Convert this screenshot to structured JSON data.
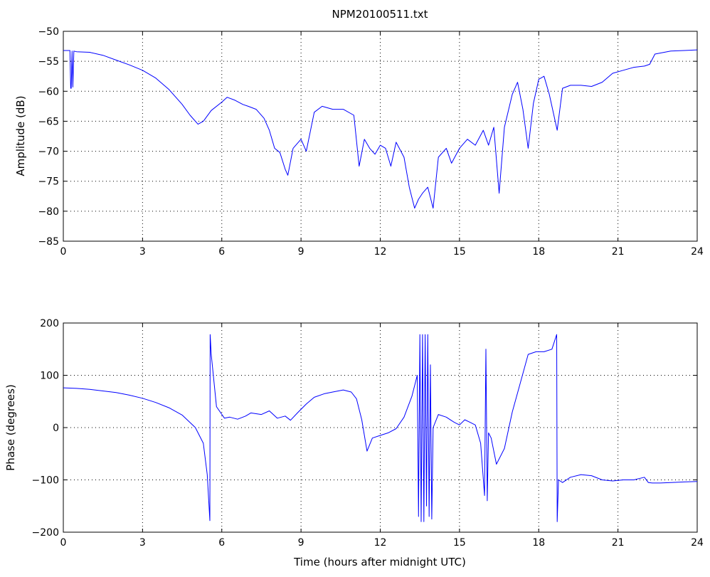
{
  "chart_data": [
    {
      "type": "line",
      "title": "NPM20100511.txt",
      "xlabel": "",
      "ylabel": "Amplitude (dB)",
      "xlim": [
        0,
        24
      ],
      "ylim": [
        -85,
        -50
      ],
      "xticks": [
        "0",
        "3",
        "6",
        "9",
        "12",
        "15",
        "18",
        "21",
        "24"
      ],
      "yticks": [
        "-50",
        "-55",
        "-60",
        "-65",
        "-70",
        "-75",
        "-80",
        "-85"
      ],
      "grid": true,
      "color": "#0000ff",
      "x": [
        0,
        0.25,
        0.28,
        0.3,
        0.33,
        0.36,
        0.4,
        0.5,
        1.0,
        1.5,
        2.0,
        2.5,
        3.0,
        3.5,
        4.0,
        4.5,
        4.8,
        5.1,
        5.3,
        5.6,
        6.0,
        6.2,
        6.5,
        6.8,
        7.0,
        7.3,
        7.6,
        7.8,
        8.0,
        8.2,
        8.4,
        8.5,
        8.7,
        9.0,
        9.2,
        9.5,
        9.8,
        10.2,
        10.6,
        11.0,
        11.2,
        11.4,
        11.6,
        11.8,
        12.0,
        12.2,
        12.4,
        12.6,
        12.9,
        13.1,
        13.3,
        13.45,
        13.6,
        13.8,
        14.0,
        14.2,
        14.5,
        14.7,
        15.0,
        15.3,
        15.6,
        15.9,
        16.1,
        16.3,
        16.5,
        16.7,
        17.0,
        17.2,
        17.4,
        17.6,
        17.8,
        18.0,
        18.2,
        18.4,
        18.7,
        18.9,
        19.2,
        19.6,
        20.0,
        20.4,
        20.8,
        21.2,
        21.6,
        22.0,
        22.2,
        22.4,
        23.0,
        23.5,
        24.0
      ],
      "values": [
        -53.2,
        -53.2,
        -59.5,
        -59.5,
        -53.3,
        -59.3,
        -53.3,
        -53.4,
        -53.5,
        -54.0,
        -54.8,
        -55.6,
        -56.5,
        -57.8,
        -59.7,
        -62.2,
        -64.0,
        -65.5,
        -65.0,
        -63.2,
        -61.8,
        -61.0,
        -61.5,
        -62.2,
        -62.5,
        -63.0,
        -64.5,
        -66.5,
        -69.5,
        -70.2,
        -73.0,
        -74.0,
        -69.5,
        -68.0,
        -70.0,
        -63.5,
        -62.5,
        -63.0,
        -63.0,
        -64.0,
        -72.5,
        -68.0,
        -69.5,
        -70.5,
        -69.0,
        -69.5,
        -72.5,
        -68.5,
        -71.0,
        -76.0,
        -79.5,
        -78.0,
        -77.0,
        -76.0,
        -79.5,
        -71.0,
        -69.5,
        -72.0,
        -69.5,
        -68.0,
        -69.0,
        -66.5,
        -69.0,
        -66.0,
        -77.0,
        -66.0,
        -60.5,
        -58.5,
        -63.0,
        -69.5,
        -62.0,
        -58.0,
        -57.5,
        -60.5,
        -66.5,
        -59.5,
        -59.0,
        -59.0,
        -59.2,
        -58.5,
        -57.0,
        -56.5,
        -56.0,
        -55.8,
        -55.5,
        -53.8,
        -53.3,
        -53.2,
        -53.1
      ]
    },
    {
      "type": "line",
      "title": "",
      "xlabel": "Time (hours after midnight UTC)",
      "ylabel": "Phase (degrees)",
      "xlim": [
        0,
        24
      ],
      "ylim": [
        -200,
        200
      ],
      "xticks": [
        "0",
        "3",
        "6",
        "9",
        "12",
        "15",
        "18",
        "21",
        "24"
      ],
      "yticks": [
        "200",
        "100",
        "0",
        "-100",
        "-200"
      ],
      "grid": true,
      "color": "#0000ff",
      "x": [
        0,
        0.5,
        1.0,
        1.5,
        2.0,
        2.5,
        3.0,
        3.5,
        4.0,
        4.5,
        5.0,
        5.3,
        5.45,
        5.55,
        5.56,
        5.6,
        5.8,
        6.1,
        6.3,
        6.6,
        6.9,
        7.1,
        7.5,
        7.8,
        8.1,
        8.4,
        8.6,
        8.9,
        9.2,
        9.5,
        9.9,
        10.2,
        10.6,
        10.9,
        11.1,
        11.3,
        11.5,
        11.7,
        12.0,
        12.3,
        12.6,
        12.9,
        13.2,
        13.4,
        13.45,
        13.5,
        13.55,
        13.6,
        13.65,
        13.7,
        13.75,
        13.8,
        13.85,
        13.9,
        13.95,
        14.0,
        14.2,
        14.5,
        14.8,
        15.0,
        15.2,
        15.4,
        15.6,
        15.8,
        15.95,
        16.0,
        16.05,
        16.1,
        16.2,
        16.4,
        16.7,
        17.0,
        17.3,
        17.6,
        17.9,
        18.2,
        18.5,
        18.68,
        18.7,
        18.75,
        18.9,
        19.2,
        19.6,
        20.0,
        20.4,
        20.8,
        21.2,
        21.6,
        22.0,
        22.15,
        22.3,
        22.6,
        23.0,
        23.5,
        24.0
      ],
      "values": [
        76,
        75,
        73,
        70,
        67,
        62,
        56,
        48,
        38,
        24,
        0,
        -30,
        -90,
        -178,
        178,
        140,
        40,
        18,
        20,
        16,
        22,
        28,
        25,
        32,
        18,
        22,
        14,
        30,
        45,
        58,
        65,
        68,
        72,
        68,
        55,
        15,
        -45,
        -20,
        -15,
        -10,
        -2,
        20,
        60,
        100,
        -170,
        178,
        -180,
        178,
        -180,
        178,
        -150,
        178,
        -170,
        120,
        -175,
        0,
        25,
        20,
        10,
        5,
        15,
        10,
        5,
        -30,
        -130,
        150,
        -140,
        -10,
        -20,
        -70,
        -40,
        30,
        85,
        140,
        145,
        145,
        150,
        178,
        -180,
        -100,
        -105,
        -95,
        -90,
        -92,
        -100,
        -102,
        -100,
        -100,
        -95,
        -105,
        -106,
        -106,
        -105,
        -104,
        -103
      ]
    }
  ]
}
